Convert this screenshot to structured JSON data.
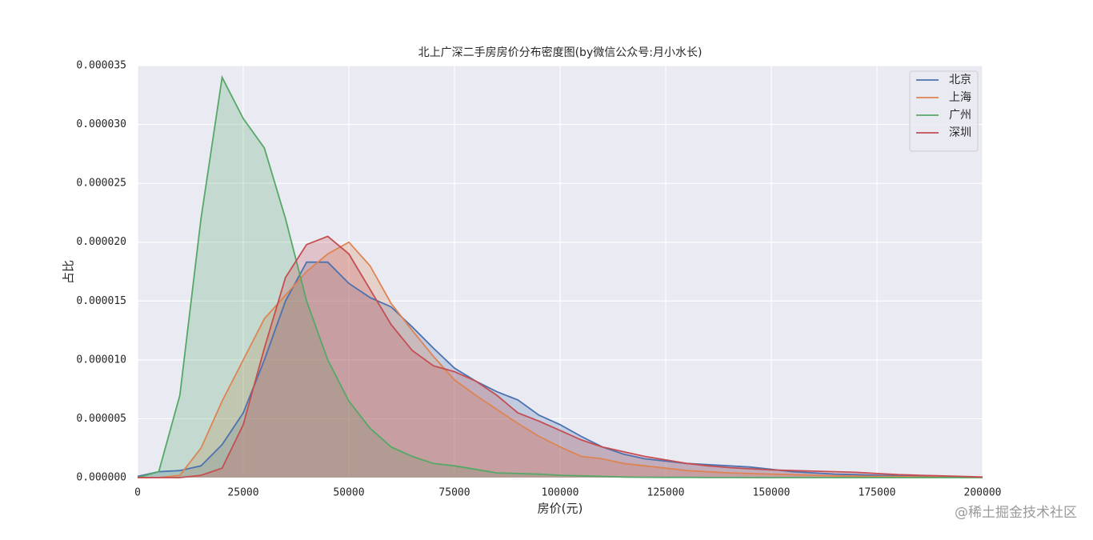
{
  "chart_data": {
    "type": "area",
    "title": "北上广深二手房房价分布密度图(by微信公众号:月小水长)",
    "x_label": "房价(元)",
    "y_label": "占比",
    "watermark": "@稀土掘金技术社区",
    "x": [
      0,
      5000,
      10000,
      15000,
      20000,
      25000,
      30000,
      35000,
      40000,
      45000,
      50000,
      55000,
      60000,
      65000,
      70000,
      75000,
      80000,
      85000,
      90000,
      95000,
      100000,
      105000,
      110000,
      115000,
      120000,
      125000,
      130000,
      135000,
      140000,
      145000,
      150000,
      155000,
      160000,
      165000,
      170000,
      175000,
      180000,
      185000,
      190000,
      195000,
      200000
    ],
    "series": [
      {
        "name": "北京",
        "color": "#4c72b0",
        "values": [
          1e-07,
          5e-07,
          6e-07,
          1e-06,
          2.8e-06,
          5.5e-06,
          1e-05,
          1.5e-05,
          1.83e-05,
          1.83e-05,
          1.65e-05,
          1.53e-05,
          1.45e-05,
          1.28e-05,
          1.1e-05,
          9.3e-06,
          8.2e-06,
          7.3e-06,
          6.6e-06,
          5.3e-06,
          4.5e-06,
          3.5e-06,
          2.6e-06,
          2e-06,
          1.6e-06,
          1.4e-06,
          1.2e-06,
          1.1e-06,
          1e-06,
          9e-07,
          7e-07,
          5e-07,
          4e-07,
          3e-07,
          2.5e-07,
          2e-07,
          1.5e-07,
          1e-07,
          8e-08,
          5e-08,
          3e-08
        ]
      },
      {
        "name": "上海",
        "color": "#dd8452",
        "values": [
          0,
          0,
          2e-07,
          2.5e-06,
          6.5e-06,
          1e-05,
          1.35e-05,
          1.55e-05,
          1.75e-05,
          1.9e-05,
          2e-05,
          1.8e-05,
          1.48e-05,
          1.25e-05,
          1.03e-05,
          8.3e-06,
          7e-06,
          5.8e-06,
          4.6e-06,
          3.5e-06,
          2.6e-06,
          1.8e-06,
          1.6e-06,
          1.2e-06,
          1e-06,
          8e-07,
          6e-07,
          5e-07,
          4e-07,
          3.5e-07,
          3e-07,
          2.5e-07,
          2e-07,
          1.5e-07,
          1.2e-07,
          1e-07,
          8e-08,
          6e-08,
          4e-08,
          2e-08,
          1e-08
        ]
      },
      {
        "name": "广州",
        "color": "#55a868",
        "values": [
          0,
          5e-07,
          7e-06,
          2.2e-05,
          3.4e-05,
          3.05e-05,
          2.8e-05,
          2.2e-05,
          1.5e-05,
          1e-05,
          6.5e-06,
          4.2e-06,
          2.6e-06,
          1.8e-06,
          1.2e-06,
          1e-06,
          7e-07,
          4e-07,
          3.5e-07,
          3e-07,
          2e-07,
          1.5e-07,
          1e-07,
          5e-08,
          3e-08,
          2e-08,
          2e-08,
          1e-08,
          1e-08,
          0,
          0,
          0,
          0,
          0,
          0,
          0,
          0,
          0,
          0,
          0,
          0
        ]
      },
      {
        "name": "深圳",
        "color": "#c44e52",
        "values": [
          0,
          0,
          0,
          2e-07,
          8e-07,
          4.5e-06,
          1.1e-05,
          1.7e-05,
          1.98e-05,
          2.05e-05,
          1.9e-05,
          1.6e-05,
          1.3e-05,
          1.08e-05,
          9.5e-06,
          9e-06,
          8.2e-06,
          7e-06,
          5.5e-06,
          4.8e-06,
          4e-06,
          3.2e-06,
          2.6e-06,
          2.2e-06,
          1.8e-06,
          1.5e-06,
          1.2e-06,
          1e-06,
          8.5e-07,
          7.5e-07,
          6.5e-07,
          6e-07,
          5.5e-07,
          5e-07,
          4.5e-07,
          3.5e-07,
          2.5e-07,
          2e-07,
          1.5e-07,
          1e-07,
          5e-08
        ]
      }
    ],
    "xlim": [
      0,
      200000
    ],
    "xticks": [
      0,
      25000,
      50000,
      75000,
      100000,
      125000,
      150000,
      175000,
      200000
    ],
    "ylim": [
      0,
      3.5e-05
    ],
    "yticks": [
      {
        "value": 0,
        "label": "0.000000"
      },
      {
        "value": 5e-06,
        "label": "0.000005"
      },
      {
        "value": 1e-05,
        "label": "0.000010"
      },
      {
        "value": 1.5e-05,
        "label": "0.000015"
      },
      {
        "value": 2e-05,
        "label": "0.000020"
      },
      {
        "value": 2.5e-05,
        "label": "0.000025"
      },
      {
        "value": 3e-05,
        "label": "0.000030"
      },
      {
        "value": 3.5e-05,
        "label": "0.000035"
      }
    ],
    "grid": true,
    "legend": "upper right",
    "fill_opacity": 0.25
  }
}
